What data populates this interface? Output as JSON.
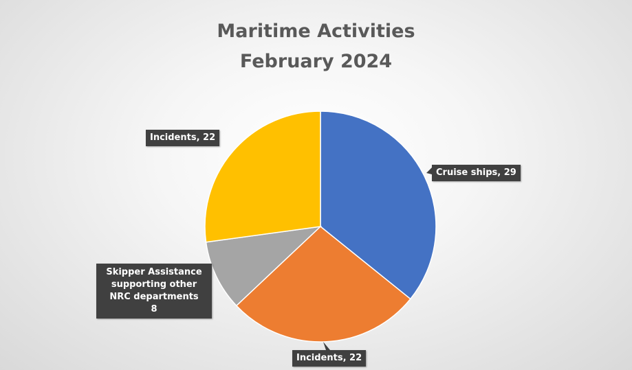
{
  "chart_data": {
    "type": "pie",
    "title_lines": [
      "Maritime Activities",
      "February 2024"
    ],
    "slices": [
      {
        "category": "Cruise ships",
        "value": 29,
        "label": "Cruise ships, 29",
        "color": "#4472C4"
      },
      {
        "category": "Incidents",
        "value": 22,
        "label": "Incidents, 22",
        "color": "#ED7D31"
      },
      {
        "category": "Skipper Assistance supporting other NRC departments",
        "value": 8,
        "label_lines": [
          "Skipper Assistance",
          "supporting other",
          "NRC departments",
          "8"
        ],
        "color": "#A5A5A5"
      },
      {
        "category": "Incidents",
        "value": 22,
        "label": "Incidents, 22",
        "color": "#FFC000"
      }
    ],
    "legend": "none",
    "data_labels": "callouts"
  }
}
